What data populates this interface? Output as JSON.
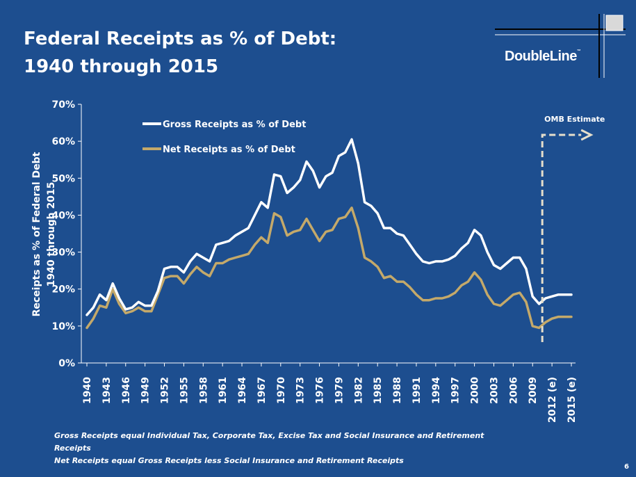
{
  "slide": {
    "title_line1": "Federal Receipts as % of Debt:",
    "title_line2": "1940 through 2015",
    "logo_text": "DoubleLine",
    "logo_tm": "™",
    "footnote_line1": "Gross Receipts equal Individual Tax, Corporate Tax, Excise Tax and Social Insurance and Retirement Receipts",
    "footnote_line2": "Net Receipts equal Gross Receipts less Social Insurance and Retirement Receipts",
    "page_number": "6"
  },
  "colors": {
    "background": "#1d4e8f",
    "gross": "#ffffff",
    "net": "#c4a96a",
    "estimate_marker": "#e6dfcc"
  },
  "chart_data": {
    "type": "line",
    "title": "",
    "xlabel": "",
    "ylabel": "Receipts as % of Federal Debt",
    "ylabel_overlay": "1940 through 2015",
    "ylim": [
      0,
      70
    ],
    "yticks": [
      "0%",
      "10%",
      "20%",
      "30%",
      "40%",
      "50%",
      "60%",
      "70%"
    ],
    "x": [
      1940,
      1941,
      1942,
      1943,
      1944,
      1945,
      1946,
      1947,
      1948,
      1949,
      1950,
      1951,
      1952,
      1953,
      1954,
      1955,
      1956,
      1957,
      1958,
      1959,
      1960,
      1961,
      1962,
      1963,
      1964,
      1965,
      1966,
      1967,
      1968,
      1969,
      1970,
      1971,
      1972,
      1973,
      1974,
      1975,
      1976,
      1977,
      1978,
      1979,
      1980,
      1981,
      1982,
      1983,
      1984,
      1985,
      1986,
      1987,
      1988,
      1989,
      1990,
      1991,
      1992,
      1993,
      1994,
      1995,
      1996,
      1997,
      1998,
      1999,
      2000,
      2001,
      2002,
      2003,
      2004,
      2005,
      2006,
      2007,
      2008,
      2009,
      2010,
      2011,
      2012,
      2013,
      2014,
      2015
    ],
    "xtick_labels": [
      {
        "x": 1940,
        "label": "1940"
      },
      {
        "x": 1943,
        "label": "1943"
      },
      {
        "x": 1946,
        "label": "1946"
      },
      {
        "x": 1949,
        "label": "1949"
      },
      {
        "x": 1952,
        "label": "1952"
      },
      {
        "x": 1955,
        "label": "1955"
      },
      {
        "x": 1958,
        "label": "1958"
      },
      {
        "x": 1961,
        "label": "1961"
      },
      {
        "x": 1964,
        "label": "1964"
      },
      {
        "x": 1967,
        "label": "1967"
      },
      {
        "x": 1970,
        "label": "1970"
      },
      {
        "x": 1973,
        "label": "1973"
      },
      {
        "x": 1976,
        "label": "1976"
      },
      {
        "x": 1979,
        "label": "1979"
      },
      {
        "x": 1982,
        "label": "1982"
      },
      {
        "x": 1985,
        "label": "1985"
      },
      {
        "x": 1988,
        "label": "1988"
      },
      {
        "x": 1991,
        "label": "1991"
      },
      {
        "x": 1994,
        "label": "1994"
      },
      {
        "x": 1997,
        "label": "1997"
      },
      {
        "x": 2000,
        "label": "2000"
      },
      {
        "x": 2003,
        "label": "2003"
      },
      {
        "x": 2006,
        "label": "2006"
      },
      {
        "x": 2009,
        "label": "2009"
      },
      {
        "x": 2012,
        "label": "2012 (e)"
      },
      {
        "x": 2015,
        "label": "2015 (e)"
      }
    ],
    "series": [
      {
        "name": "Gross Receipts as % of Debt",
        "values": [
          13,
          15,
          18.5,
          17,
          21.5,
          17.5,
          14.5,
          15,
          16.5,
          15.5,
          15.5,
          19.5,
          25.5,
          26,
          26,
          24.5,
          27.5,
          29.5,
          28.5,
          27.5,
          32,
          32.5,
          33,
          34.5,
          35.5,
          36.5,
          40,
          43.5,
          42,
          51,
          50.5,
          46,
          47.5,
          49.5,
          54.5,
          52,
          47.5,
          50.5,
          51.5,
          56,
          57,
          60.5,
          54,
          43.5,
          42.5,
          40.5,
          36.5,
          36.5,
          35,
          34.5,
          32,
          29.5,
          27.5,
          27,
          27.5,
          27.5,
          28,
          29,
          31,
          32.5,
          36,
          34.5,
          30,
          26.5,
          25.5,
          27,
          28.5,
          28.5,
          25.5,
          18,
          16,
          17.5,
          18,
          18.5,
          18.5,
          18.5
        ]
      },
      {
        "name": "Net Receipts as % of Debt",
        "values": [
          9.5,
          12,
          15.5,
          15,
          20,
          16,
          13.5,
          14,
          15,
          14,
          14,
          18.5,
          23,
          23.5,
          23.5,
          21.5,
          24,
          26,
          24.5,
          23.5,
          27,
          27,
          28,
          28.5,
          29,
          29.5,
          32,
          34,
          32.5,
          40.5,
          39.5,
          34.5,
          35.5,
          36,
          39,
          36,
          33,
          35.5,
          36,
          39,
          39.5,
          42,
          36.5,
          28.5,
          27.5,
          26,
          23,
          23.5,
          22,
          22,
          20.5,
          18.5,
          17,
          17,
          17.5,
          17.5,
          18,
          19,
          21,
          22,
          24.5,
          22.5,
          18.5,
          16,
          15.5,
          17,
          18.5,
          19,
          16.5,
          10,
          9.5,
          11,
          12,
          12.5,
          12.5,
          12.5
        ]
      }
    ],
    "annotations": {
      "omb_label": "OMB Estimate",
      "omb_start_year": 2010.5
    }
  }
}
